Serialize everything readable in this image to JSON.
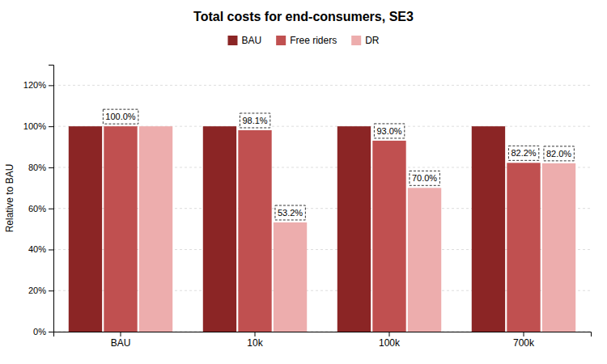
{
  "chart_data": {
    "type": "bar",
    "title": "Total costs for end-consumers, SE3",
    "categories": [
      "BAU",
      "10k",
      "100k",
      "700k"
    ],
    "series": [
      {
        "name": "BAU",
        "color": "#8B2525",
        "values": [
          100.0,
          100.0,
          100.0,
          100.0
        ]
      },
      {
        "name": "Free riders",
        "color": "#C05050",
        "values": [
          100.0,
          98.1,
          93.0,
          82.2
        ]
      },
      {
        "name": "DR",
        "color": "#EDADAD",
        "values": [
          100.0,
          53.2,
          70.0,
          82.0
        ]
      }
    ],
    "ylabel": "Relative to BAU",
    "ylim": [
      0,
      130
    ],
    "yticks": [
      {
        "value": 0,
        "label": "0%"
      },
      {
        "value": 20,
        "label": "20%"
      },
      {
        "value": 40,
        "label": "40%"
      },
      {
        "value": 60,
        "label": "60%"
      },
      {
        "value": 80,
        "label": "80%"
      },
      {
        "value": 100,
        "label": "100%"
      },
      {
        "value": 120,
        "label": "120%"
      }
    ],
    "grid": true,
    "legend": "top",
    "annotations": [
      {
        "text": "100.0%",
        "x": "BAU",
        "series": "Free riders",
        "y": 100.0
      },
      {
        "text": "98.1%",
        "x": "10k",
        "series": "Free riders",
        "y": 98.1
      },
      {
        "text": "53.2%",
        "x": "10k",
        "series": "DR",
        "y": 53.2
      },
      {
        "text": "93.0%",
        "x": "100k",
        "series": "Free riders",
        "y": 93.0
      },
      {
        "text": "70.0%",
        "x": "100k",
        "series": "DR",
        "y": 70.0
      },
      {
        "text": "82.2%",
        "x": "700k",
        "series": "Free riders",
        "y": 82.2
      },
      {
        "text": "82.0%",
        "x": "700k",
        "series": "DR",
        "y": 82.0
      }
    ]
  }
}
